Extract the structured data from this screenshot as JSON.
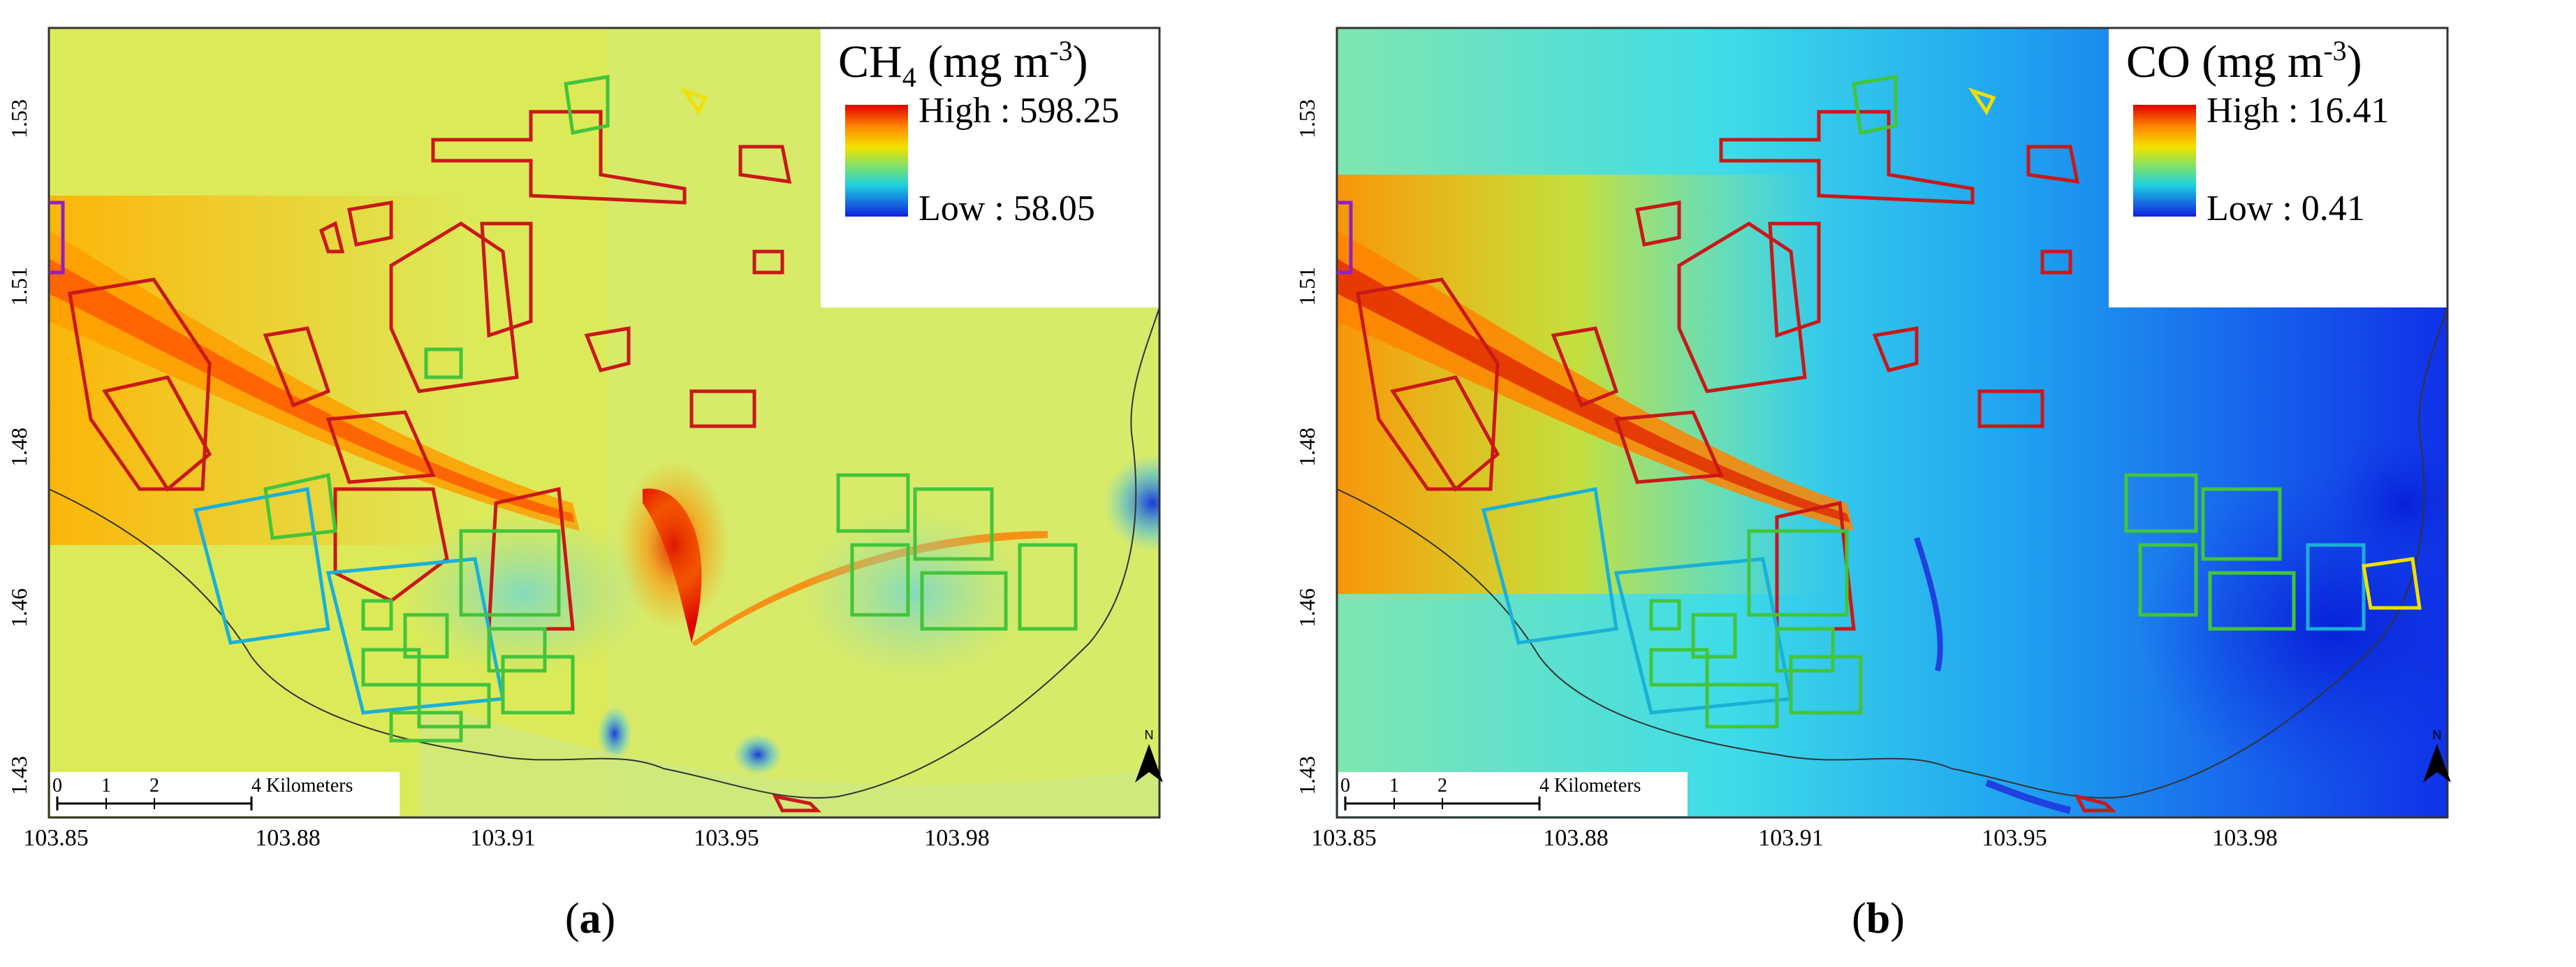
{
  "panels": [
    {
      "id": "a",
      "caption_letter": "a",
      "legend": {
        "title_main": "CH",
        "title_sub": "4",
        "title_units": " (mg m",
        "title_exp": "-3",
        "title_close": ")",
        "high_label": "High : 598.25",
        "low_label": "Low : 58.05"
      },
      "pollutant": "CH4"
    },
    {
      "id": "b",
      "caption_letter": "b",
      "legend": {
        "title_main": "CO",
        "title_sub": "",
        "title_units": " (mg m",
        "title_exp": "-3",
        "title_close": ")",
        "high_label": "High : 16.41",
        "low_label": "Low : 0.41"
      },
      "pollutant": "CO"
    }
  ],
  "axes": {
    "x_ticks": [
      "103.85",
      "103.88",
      "103.91",
      "103.95",
      "103.98"
    ],
    "y_ticks": [
      "1.53",
      "1.51",
      "1.48",
      "1.46",
      "1.43"
    ]
  },
  "scale_bar": {
    "labels": [
      "0",
      "1",
      "2",
      "4 Kilometers"
    ]
  },
  "north_arrow": {
    "label": "N"
  },
  "caption_open": "(",
  "caption_close": ")"
}
